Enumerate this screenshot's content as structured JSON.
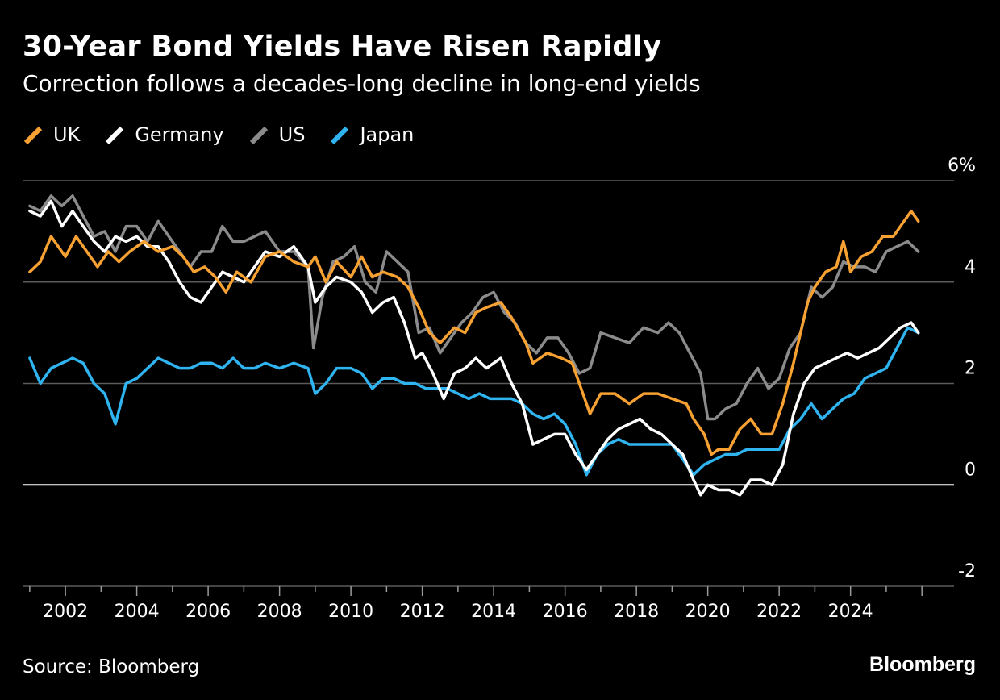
{
  "header": {
    "title": "30-Year Bond Yields Have Risen Rapidly",
    "subtitle": "Correction follows a decades-long decline in long-end yields"
  },
  "footer": {
    "source": "Source: Bloomberg",
    "brand": "Bloomberg"
  },
  "colors": {
    "UK": "#f7a133",
    "Germany": "#ffffff",
    "US": "#8b8b8b",
    "Japan": "#2fb4f0",
    "grid": "#5a5a5a",
    "zero_line": "#ffffff",
    "background": "#000000"
  },
  "chart_data": {
    "type": "line",
    "title": "30-Year Bond Yields Have Risen Rapidly",
    "subtitle": "Correction follows a decades-long decline in long-end yields",
    "xlabel": "",
    "ylabel": "",
    "xlim": [
      2000.8,
      2026.9
    ],
    "ylim": [
      -2,
      6
    ],
    "yticks": [
      6,
      4,
      2,
      0,
      -2
    ],
    "ytick_labels": [
      "6%",
      "4",
      "2",
      "0",
      "-2"
    ],
    "xticks": [
      2002,
      2004,
      2006,
      2008,
      2010,
      2012,
      2014,
      2016,
      2018,
      2020,
      2022,
      2024
    ],
    "xtick_labels": [
      "2002",
      "2004",
      "2006",
      "2008",
      "2010",
      "2012",
      "2014",
      "2016",
      "2018",
      "2020",
      "2022",
      "2024"
    ],
    "grid": true,
    "legend_position": "top-left",
    "series": [
      {
        "name": "UK",
        "x": [
          2001.0,
          2001.3,
          2001.6,
          2002.0,
          2002.3,
          2002.6,
          2002.9,
          2003.2,
          2003.5,
          2003.8,
          2004.2,
          2004.6,
          2005.0,
          2005.3,
          2005.6,
          2005.9,
          2006.2,
          2006.5,
          2006.8,
          2007.2,
          2007.6,
          2008.0,
          2008.4,
          2008.8,
          2009.0,
          2009.3,
          2009.6,
          2010.0,
          2010.3,
          2010.6,
          2010.9,
          2011.3,
          2011.6,
          2011.9,
          2012.2,
          2012.5,
          2012.9,
          2013.2,
          2013.5,
          2013.8,
          2014.2,
          2014.5,
          2014.9,
          2015.1,
          2015.5,
          2015.9,
          2016.2,
          2016.5,
          2016.7,
          2017.0,
          2017.4,
          2017.8,
          2018.2,
          2018.6,
          2019.0,
          2019.4,
          2019.6,
          2019.9,
          2020.1,
          2020.3,
          2020.6,
          2020.9,
          2021.2,
          2021.5,
          2021.8,
          2022.1,
          2022.4,
          2022.6,
          2022.8,
          2023.0,
          2023.3,
          2023.6,
          2023.8,
          2024.0,
          2024.3,
          2024.6,
          2024.9,
          2025.2,
          2025.5,
          2025.7,
          2025.9
        ],
        "values": [
          4.2,
          4.4,
          4.9,
          4.5,
          4.9,
          4.6,
          4.3,
          4.6,
          4.4,
          4.6,
          4.8,
          4.6,
          4.7,
          4.5,
          4.2,
          4.3,
          4.1,
          3.8,
          4.2,
          4.0,
          4.5,
          4.6,
          4.4,
          4.3,
          4.5,
          4.0,
          4.4,
          4.1,
          4.5,
          4.1,
          4.2,
          4.1,
          3.9,
          3.5,
          3.0,
          2.8,
          3.1,
          3.0,
          3.4,
          3.5,
          3.6,
          3.3,
          2.8,
          2.4,
          2.6,
          2.5,
          2.4,
          1.8,
          1.4,
          1.8,
          1.8,
          1.6,
          1.8,
          1.8,
          1.7,
          1.6,
          1.3,
          1.0,
          0.6,
          0.7,
          0.7,
          1.1,
          1.3,
          1.0,
          1.0,
          1.6,
          2.4,
          3.0,
          3.6,
          3.9,
          4.2,
          4.3,
          4.8,
          4.2,
          4.5,
          4.6,
          4.9,
          4.9,
          5.2,
          5.4,
          5.2
        ]
      },
      {
        "name": "Germany",
        "x": [
          2001.0,
          2001.3,
          2001.6,
          2001.9,
          2002.2,
          2002.5,
          2002.8,
          2003.1,
          2003.4,
          2003.7,
          2004.0,
          2004.3,
          2004.6,
          2004.9,
          2005.2,
          2005.5,
          2005.8,
          2006.1,
          2006.4,
          2006.7,
          2007.0,
          2007.3,
          2007.6,
          2008.0,
          2008.4,
          2008.8,
          2009.0,
          2009.3,
          2009.6,
          2010.0,
          2010.3,
          2010.6,
          2010.9,
          2011.2,
          2011.5,
          2011.8,
          2012.0,
          2012.3,
          2012.6,
          2012.9,
          2013.2,
          2013.5,
          2013.8,
          2014.2,
          2014.5,
          2014.8,
          2015.1,
          2015.4,
          2015.7,
          2016.0,
          2016.3,
          2016.6,
          2016.9,
          2017.2,
          2017.5,
          2017.8,
          2018.1,
          2018.4,
          2018.7,
          2019.0,
          2019.3,
          2019.6,
          2019.8,
          2020.0,
          2020.3,
          2020.6,
          2020.9,
          2021.2,
          2021.5,
          2021.8,
          2022.1,
          2022.4,
          2022.7,
          2023.0,
          2023.3,
          2023.6,
          2023.9,
          2024.2,
          2024.5,
          2024.8,
          2025.1,
          2025.4,
          2025.7,
          2025.9
        ],
        "values": [
          5.4,
          5.3,
          5.6,
          5.1,
          5.4,
          5.1,
          4.8,
          4.6,
          4.9,
          4.8,
          4.9,
          4.7,
          4.7,
          4.4,
          4.0,
          3.7,
          3.6,
          3.9,
          4.2,
          4.1,
          4.0,
          4.3,
          4.6,
          4.5,
          4.7,
          4.3,
          3.6,
          3.9,
          4.1,
          4.0,
          3.8,
          3.4,
          3.6,
          3.7,
          3.2,
          2.5,
          2.6,
          2.2,
          1.7,
          2.2,
          2.3,
          2.5,
          2.3,
          2.5,
          2.0,
          1.6,
          0.8,
          0.9,
          1.0,
          1.0,
          0.6,
          0.3,
          0.6,
          0.9,
          1.1,
          1.2,
          1.3,
          1.1,
          1.0,
          0.8,
          0.6,
          0.1,
          -0.2,
          0.0,
          -0.1,
          -0.1,
          -0.2,
          0.1,
          0.1,
          0.0,
          0.4,
          1.4,
          2.0,
          2.3,
          2.4,
          2.5,
          2.6,
          2.5,
          2.6,
          2.7,
          2.9,
          3.1,
          3.2,
          3.0
        ]
      },
      {
        "name": "US",
        "x": [
          2001.0,
          2001.3,
          2001.6,
          2001.9,
          2002.2,
          2002.5,
          2002.8,
          2003.1,
          2003.4,
          2003.7,
          2004.0,
          2004.3,
          2004.6,
          2004.9,
          2005.2,
          2005.5,
          2005.8,
          2006.1,
          2006.4,
          2006.7,
          2007.0,
          2007.3,
          2007.6,
          2008.0,
          2008.4,
          2008.8,
          2008.95,
          2009.2,
          2009.5,
          2009.8,
          2010.1,
          2010.4,
          2010.7,
          2011.0,
          2011.3,
          2011.6,
          2011.9,
          2012.2,
          2012.5,
          2012.8,
          2013.1,
          2013.4,
          2013.7,
          2014.0,
          2014.3,
          2014.6,
          2014.9,
          2015.2,
          2015.5,
          2015.8,
          2016.1,
          2016.4,
          2016.7,
          2017.0,
          2017.4,
          2017.8,
          2018.2,
          2018.6,
          2018.9,
          2019.2,
          2019.5,
          2019.8,
          2020.0,
          2020.2,
          2020.5,
          2020.8,
          2021.1,
          2021.4,
          2021.7,
          2022.0,
          2022.3,
          2022.6,
          2022.9,
          2023.2,
          2023.5,
          2023.8,
          2024.1,
          2024.4,
          2024.7,
          2025.0,
          2025.3,
          2025.6,
          2025.9
        ],
        "values": [
          5.5,
          5.4,
          5.7,
          5.5,
          5.7,
          5.3,
          4.9,
          5.0,
          4.6,
          5.1,
          5.1,
          4.8,
          5.2,
          4.9,
          4.6,
          4.3,
          4.6,
          4.6,
          5.1,
          4.8,
          4.8,
          4.9,
          5.0,
          4.6,
          4.6,
          4.3,
          2.7,
          3.7,
          4.4,
          4.5,
          4.7,
          4.0,
          3.8,
          4.6,
          4.4,
          4.2,
          3.0,
          3.1,
          2.6,
          2.9,
          3.2,
          3.4,
          3.7,
          3.8,
          3.4,
          3.2,
          2.8,
          2.6,
          2.9,
          2.9,
          2.6,
          2.2,
          2.3,
          3.0,
          2.9,
          2.8,
          3.1,
          3.0,
          3.2,
          3.0,
          2.6,
          2.2,
          1.3,
          1.3,
          1.5,
          1.6,
          2.0,
          2.3,
          1.9,
          2.1,
          2.7,
          3.0,
          3.9,
          3.7,
          3.9,
          4.4,
          4.3,
          4.3,
          4.2,
          4.6,
          4.7,
          4.8,
          4.6
        ]
      },
      {
        "name": "Japan",
        "x": [
          2001.0,
          2001.3,
          2001.6,
          2001.9,
          2002.2,
          2002.5,
          2002.8,
          2003.1,
          2003.4,
          2003.7,
          2004.0,
          2004.3,
          2004.6,
          2004.9,
          2005.2,
          2005.5,
          2005.8,
          2006.1,
          2006.4,
          2006.7,
          2007.0,
          2007.3,
          2007.6,
          2008.0,
          2008.4,
          2008.8,
          2009.0,
          2009.3,
          2009.6,
          2010.0,
          2010.3,
          2010.6,
          2010.9,
          2011.2,
          2011.5,
          2011.8,
          2012.1,
          2012.4,
          2012.7,
          2013.0,
          2013.3,
          2013.6,
          2013.9,
          2014.2,
          2014.5,
          2014.8,
          2015.1,
          2015.4,
          2015.7,
          2016.0,
          2016.3,
          2016.6,
          2016.9,
          2017.2,
          2017.5,
          2017.8,
          2018.1,
          2018.4,
          2018.7,
          2019.0,
          2019.3,
          2019.6,
          2019.9,
          2020.2,
          2020.5,
          2020.8,
          2021.1,
          2021.4,
          2021.7,
          2022.0,
          2022.3,
          2022.6,
          2022.9,
          2023.2,
          2023.5,
          2023.8,
          2024.1,
          2024.4,
          2024.7,
          2025.0,
          2025.3,
          2025.6,
          2025.9
        ],
        "values": [
          2.5,
          2.0,
          2.3,
          2.4,
          2.5,
          2.4,
          2.0,
          1.8,
          1.2,
          2.0,
          2.1,
          2.3,
          2.5,
          2.4,
          2.3,
          2.3,
          2.4,
          2.4,
          2.3,
          2.5,
          2.3,
          2.3,
          2.4,
          2.3,
          2.4,
          2.3,
          1.8,
          2.0,
          2.3,
          2.3,
          2.2,
          1.9,
          2.1,
          2.1,
          2.0,
          2.0,
          1.9,
          1.9,
          1.9,
          1.8,
          1.7,
          1.8,
          1.7,
          1.7,
          1.7,
          1.6,
          1.4,
          1.3,
          1.4,
          1.2,
          0.8,
          0.2,
          0.6,
          0.8,
          0.9,
          0.8,
          0.8,
          0.8,
          0.8,
          0.8,
          0.5,
          0.2,
          0.4,
          0.5,
          0.6,
          0.6,
          0.7,
          0.7,
          0.7,
          0.7,
          1.1,
          1.3,
          1.6,
          1.3,
          1.5,
          1.7,
          1.8,
          2.1,
          2.2,
          2.3,
          2.7,
          3.1,
          3.0
        ]
      }
    ]
  }
}
